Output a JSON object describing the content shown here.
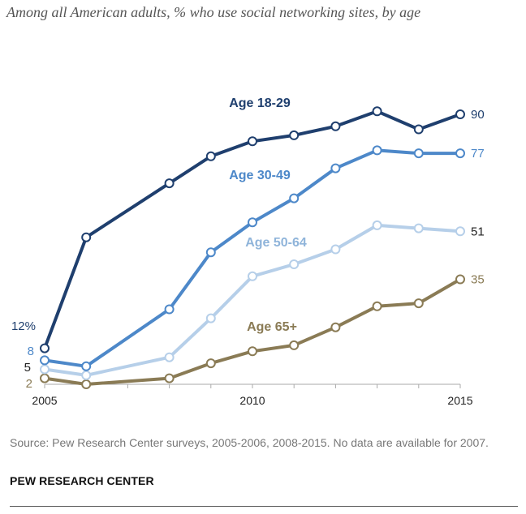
{
  "subtitle": "Among all American adults, % who use social networking sites, by age",
  "source": "Source: Pew Research Center surveys, 2005-2006, 2008-2015. No data are available for 2007.",
  "brand": "PEW RESEARCH CENTER",
  "chart_data": {
    "type": "line",
    "xlim": [
      2005,
      2015
    ],
    "ylim": [
      0,
      100
    ],
    "grid": false,
    "legend": "inline labels",
    "x_ticks": [
      "2005",
      "2010",
      "2015"
    ],
    "series": [
      {
        "name": "Age 18-29",
        "color": "#1f3f6e",
        "x": [
          2005,
          2006,
          2008,
          2009,
          2010,
          2011,
          2012,
          2013,
          2014,
          2015
        ],
        "y": [
          12,
          49,
          67,
          76,
          81,
          83,
          86,
          91,
          85,
          90
        ],
        "start_label": "12%",
        "end_label": "90"
      },
      {
        "name": "Age 30-49",
        "color": "#4d88c9",
        "x": [
          2005,
          2006,
          2008,
          2009,
          2010,
          2011,
          2012,
          2013,
          2014,
          2015
        ],
        "y": [
          8,
          6,
          25,
          44,
          54,
          62,
          72,
          78,
          77,
          77
        ],
        "start_label": "8",
        "end_label": "77"
      },
      {
        "name": "Age 50-64",
        "color": "#b6cfe9",
        "x": [
          2005,
          2006,
          2008,
          2009,
          2010,
          2011,
          2012,
          2013,
          2014,
          2015
        ],
        "y": [
          5,
          3,
          9,
          22,
          36,
          40,
          45,
          53,
          52,
          51
        ],
        "start_label": "5",
        "end_label": "51"
      },
      {
        "name": "Age 65+",
        "color": "#8a7b55",
        "x": [
          2005,
          2006,
          2008,
          2009,
          2010,
          2011,
          2012,
          2013,
          2014,
          2015
        ],
        "y": [
          2,
          0,
          2,
          7,
          11,
          13,
          19,
          26,
          27,
          35
        ],
        "start_label": "2",
        "end_label": "35"
      }
    ]
  }
}
